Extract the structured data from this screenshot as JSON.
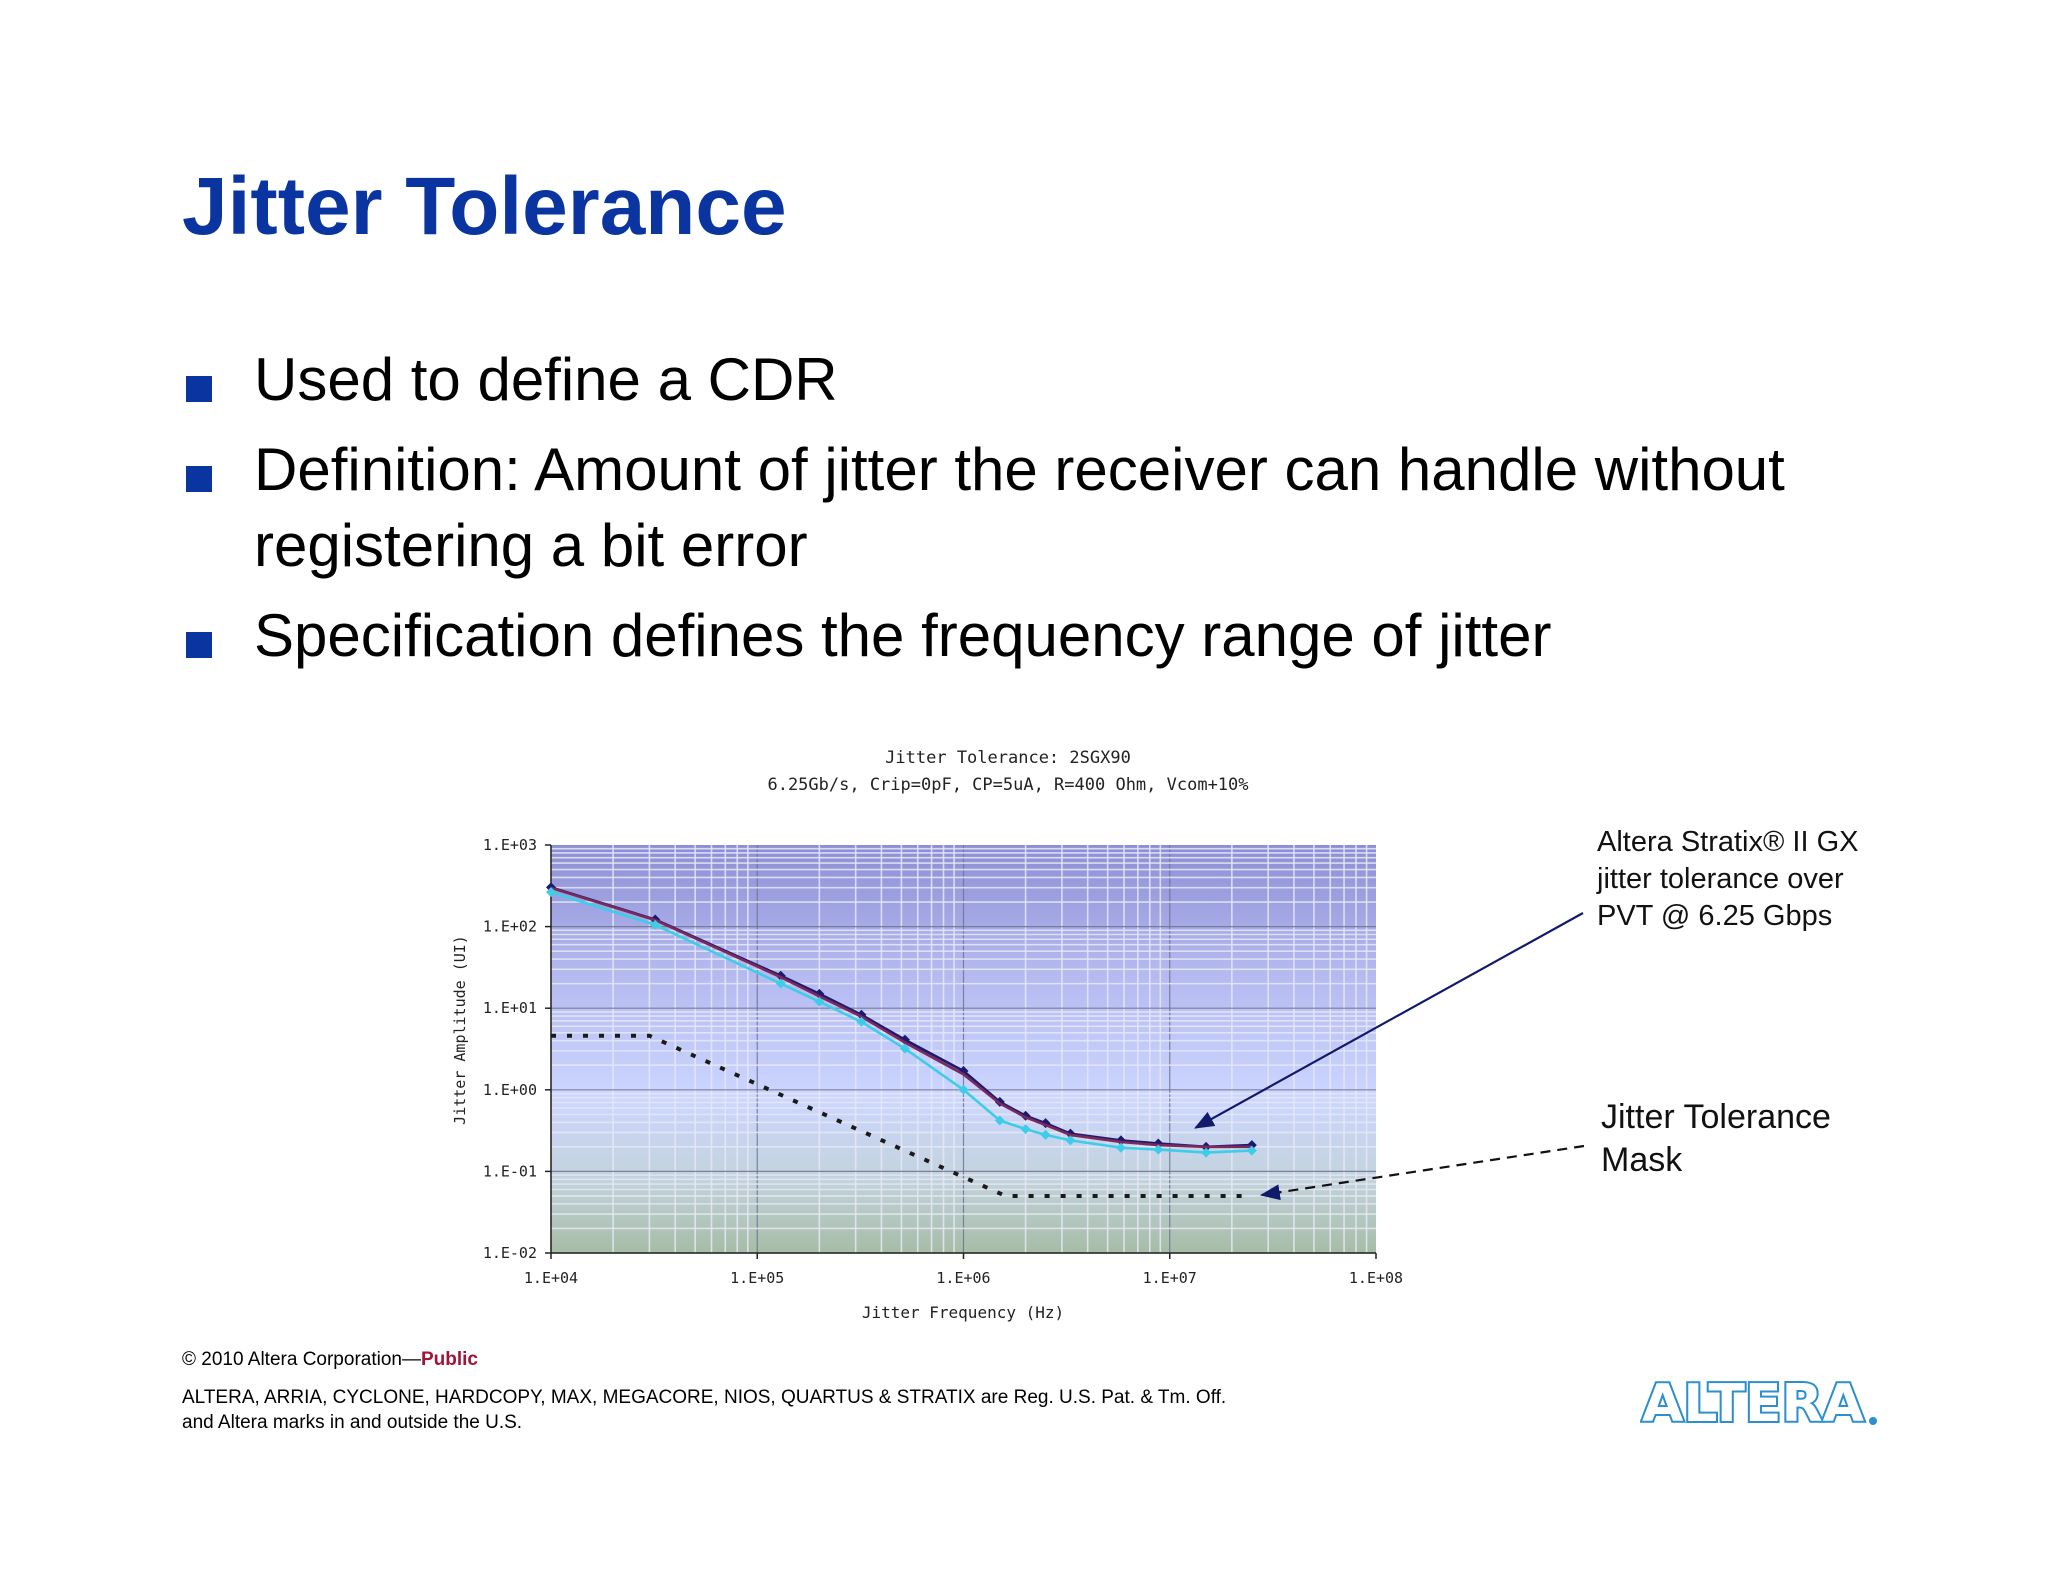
{
  "slide": {
    "title": "Jitter Tolerance",
    "bullets": [
      {
        "lines": [
          "Used to define a CDR"
        ]
      },
      {
        "lines": [
          "Definition: Amount of jitter the receiver can handle without",
          "registering a bit error"
        ]
      },
      {
        "lines": [
          "Specification defines the frequency range of jitter"
        ]
      }
    ]
  },
  "chart_data": {
    "type": "line",
    "title": "Jitter Tolerance: 2SGX90",
    "subtitle": "6.25Gb/s, Crip=0pF, CP=5uA, R=400 Ohm, Vcom+10%",
    "xlabel": "Jitter Frequency (Hz)",
    "ylabel": "Jitter Amplitude (UI)",
    "xscale": "log",
    "yscale": "log",
    "xlim": [
      10000,
      100000000
    ],
    "ylim": [
      0.01,
      1000
    ],
    "xticks": [
      "1.E+04",
      "1.E+05",
      "1.E+06",
      "1.E+07",
      "1.E+08"
    ],
    "yticks": [
      "1.E+03",
      "1.E+02",
      "1.E+01",
      "1.E+00",
      "1.E-01",
      "1.E-02"
    ],
    "grid": true,
    "series": [
      {
        "color": "#1c1870",
        "marker": "diamond",
        "x": [
          10000,
          32000,
          130000,
          200000,
          320000,
          520000,
          1000000,
          1500000,
          2000000,
          2500000,
          3300000,
          5800000,
          8800000,
          15000000,
          25000000
        ],
        "y": [
          302,
          122,
          25,
          15,
          8.3,
          4.1,
          1.7,
          0.71,
          0.48,
          0.39,
          0.29,
          0.24,
          0.22,
          0.2,
          0.21
        ]
      },
      {
        "color": "#7a2a5a",
        "marker": "none",
        "x": [
          10000,
          32000,
          130000,
          200000,
          320000,
          520000,
          1000000,
          1500000,
          2000000,
          2500000,
          3300000,
          5800000,
          8800000,
          15000000,
          25000000
        ],
        "y": [
          298,
          120,
          24,
          14,
          7.9,
          3.8,
          1.55,
          0.68,
          0.46,
          0.37,
          0.28,
          0.23,
          0.21,
          0.2,
          0.2
        ]
      },
      {
        "color": "#3ecde8",
        "marker": "diamond",
        "x": [
          10000,
          32000,
          130000,
          200000,
          320000,
          520000,
          1000000,
          1500000,
          2000000,
          2500000,
          3300000,
          5800000,
          8800000,
          15000000,
          25000000
        ],
        "y": [
          265,
          105,
          20,
          12,
          6.8,
          3.2,
          1.0,
          0.42,
          0.33,
          0.28,
          0.24,
          0.195,
          0.185,
          0.17,
          0.18
        ]
      },
      {
        "color": "#1a1a1a",
        "marker": "none",
        "dash": true,
        "x": [
          10000,
          30000,
          1600000,
          25000000
        ],
        "y": [
          4.6,
          4.6,
          0.05,
          0.05
        ]
      }
    ],
    "annotations": [
      {
        "lines": [
          "Altera Stratix® II GX",
          "jitter tolerance over",
          "PVT @ 6.25 Gbps"
        ],
        "arrow_to": {
          "x": 12500000,
          "y": 0.29
        }
      },
      {
        "lines": [
          "Jitter Tolerance",
          "Mask"
        ],
        "arrow_to": {
          "x": 25000000,
          "y": 0.05
        }
      }
    ]
  },
  "footer": {
    "copyright": "© 2010 Altera Corporation—",
    "public_label": "Public",
    "trademark_lines": [
      "ALTERA, ARRIA, CYCLONE, HARDCOPY, MAX, MEGACORE, NIOS, QUARTUS & STRATIX are Reg. U.S. Pat. & Tm. Off.",
      "and Altera marks in and outside the U.S."
    ],
    "logo_text": "ALTERA"
  },
  "colors": {
    "title": "#0a35a0",
    "bullet": "#0a35a0",
    "public": "#a0143c",
    "logo": "#2d8fce",
    "plot_top": "#8c8ed4",
    "plot_mid": "#ccd6ff",
    "plot_bottom": "#a7bca6"
  }
}
